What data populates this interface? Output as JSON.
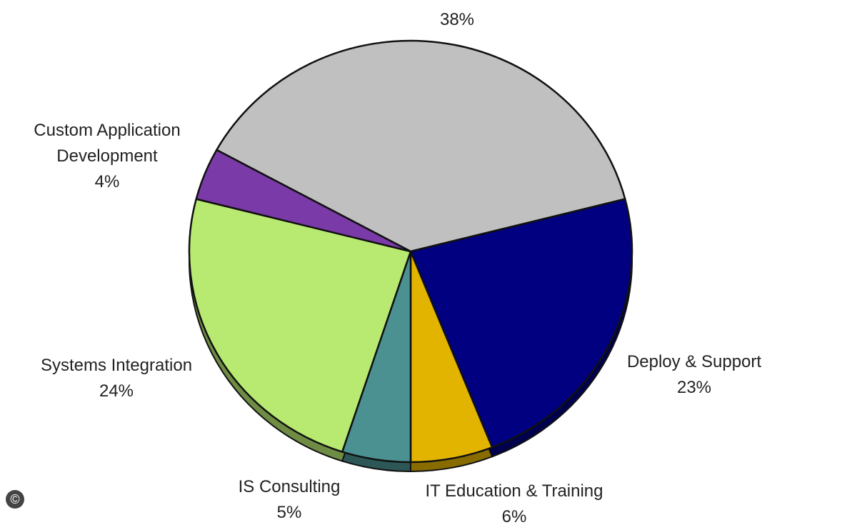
{
  "chart_data": {
    "type": "pie",
    "categories": [
      null,
      "Deploy & Support",
      "IT Education & Training",
      "IS Consulting",
      "Systems Integration",
      "Custom Application Development"
    ],
    "values": [
      38,
      23,
      6,
      5,
      24,
      4
    ],
    "value_labels": [
      "38%",
      "23%",
      "6%",
      "5%",
      "24%",
      "4%"
    ],
    "colors": [
      "#c0c0c0",
      "#000080",
      "#e2b400",
      "#4b9191",
      "#b8ea72",
      "#7a3aa8"
    ]
  },
  "copyright": "©"
}
